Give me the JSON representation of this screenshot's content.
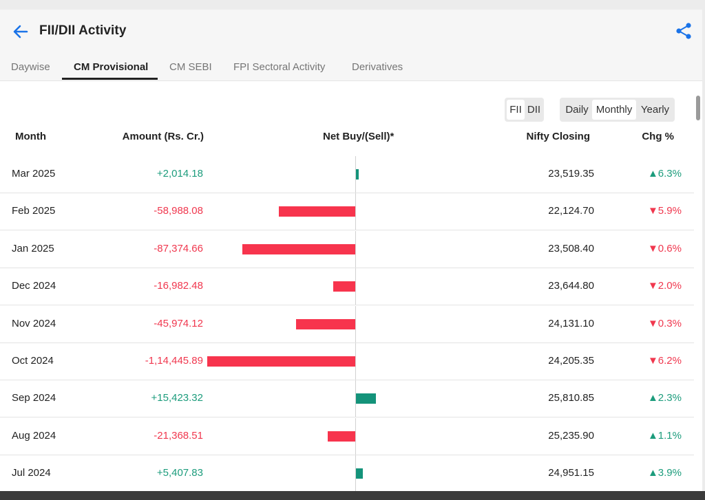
{
  "header": {
    "title": "FII/DII Activity",
    "back_icon": "arrow-left-icon",
    "share_icon": "share-icon",
    "accent_color": "#1a73e8"
  },
  "tabs": [
    {
      "label": "Daywise",
      "active": false
    },
    {
      "label": "CM Provisional",
      "active": true
    },
    {
      "label": "CM SEBI",
      "active": false
    },
    {
      "label": "FPI Sectoral Activity",
      "active": false
    },
    {
      "label": "Derivatives",
      "active": false
    }
  ],
  "investor_toggle": {
    "options": [
      "FII",
      "DII"
    ],
    "selected": "FII"
  },
  "period_toggle": {
    "options": [
      "Daily",
      "Monthly",
      "Yearly"
    ],
    "selected": "Monthly"
  },
  "table": {
    "columns": {
      "month": "Month",
      "amount": "Amount (Rs. Cr.)",
      "net": "Net Buy/(Sell)*",
      "nifty": "Nifty Closing",
      "chg": "Chg %"
    },
    "rows": [
      {
        "month": "Mar 2025",
        "amount": "+2,014.18",
        "value": 2014.18,
        "nifty": "23,519.35",
        "chg": "6.3%",
        "chg_dir": "up"
      },
      {
        "month": "Feb 2025",
        "amount": "-58,988.08",
        "value": -58988.08,
        "nifty": "22,124.70",
        "chg": "5.9%",
        "chg_dir": "down"
      },
      {
        "month": "Jan 2025",
        "amount": "-87,374.66",
        "value": -87374.66,
        "nifty": "23,508.40",
        "chg": "0.6%",
        "chg_dir": "down"
      },
      {
        "month": "Dec 2024",
        "amount": "-16,982.48",
        "value": -16982.48,
        "nifty": "23,644.80",
        "chg": "2.0%",
        "chg_dir": "down"
      },
      {
        "month": "Nov 2024",
        "amount": "-45,974.12",
        "value": -45974.12,
        "nifty": "24,131.10",
        "chg": "0.3%",
        "chg_dir": "down"
      },
      {
        "month": "Oct 2024",
        "amount": "-1,14,445.89",
        "value": -114445.89,
        "nifty": "24,205.35",
        "chg": "6.2%",
        "chg_dir": "down"
      },
      {
        "month": "Sep 2024",
        "amount": "+15,423.32",
        "value": 15423.32,
        "nifty": "25,810.85",
        "chg": "2.3%",
        "chg_dir": "up"
      },
      {
        "month": "Aug 2024",
        "amount": "-21,368.51",
        "value": -21368.51,
        "nifty": "25,235.90",
        "chg": "1.1%",
        "chg_dir": "up"
      },
      {
        "month": "Jul 2024",
        "amount": "+5,407.83",
        "value": 5407.83,
        "nifty": "24,951.15",
        "chg": "3.9%",
        "chg_dir": "up"
      }
    ]
  },
  "colors": {
    "positive": "#1c9c7c",
    "negative": "#f0374e"
  }
}
